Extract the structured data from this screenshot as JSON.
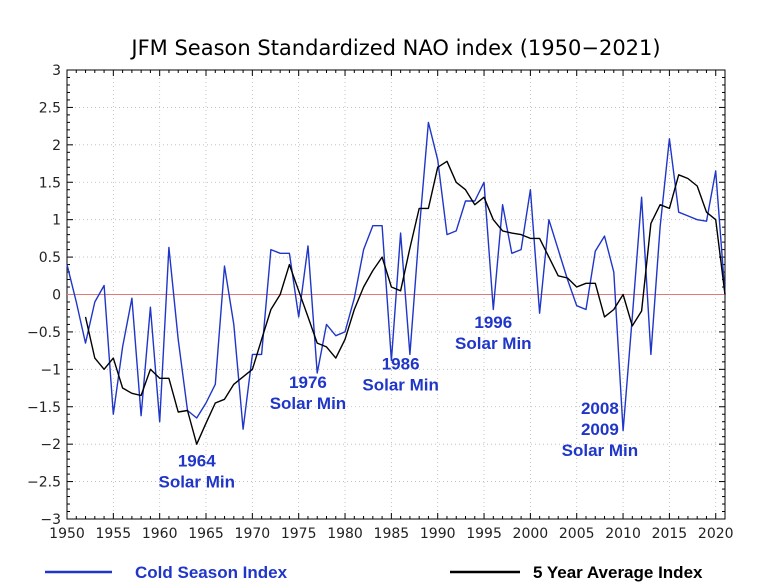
{
  "chart_data": {
    "type": "line",
    "title": "JFM Season Standardized NAO index (1950−2021)",
    "xlim": [
      1950,
      2021
    ],
    "ylim": [
      -3,
      3
    ],
    "x_ticks": [
      1950,
      1955,
      1960,
      1965,
      1970,
      1975,
      1980,
      1985,
      1990,
      1995,
      2000,
      2005,
      2010,
      2015,
      2020
    ],
    "y_ticks": [
      3,
      2.5,
      2,
      1.5,
      1,
      0.5,
      0,
      -0.5,
      -1,
      -1.5,
      -2,
      -2.5,
      -3
    ],
    "y_tick_labels": [
      "3",
      "2.5",
      "2",
      "1.5",
      "1",
      "0.5",
      "0",
      "−0.5",
      "−1",
      "−1.5",
      "−2",
      "−2.5",
      "−3"
    ],
    "zero_line": true,
    "series": [
      {
        "name": "Cold Season Index",
        "color": "#1f36c8",
        "x": [
          1950,
          1951,
          1952,
          1953,
          1954,
          1955,
          1956,
          1957,
          1958,
          1959,
          1960,
          1961,
          1962,
          1963,
          1964,
          1965,
          1966,
          1967,
          1968,
          1969,
          1970,
          1971,
          1972,
          1973,
          1974,
          1975,
          1976,
          1977,
          1978,
          1979,
          1980,
          1981,
          1982,
          1983,
          1984,
          1985,
          1986,
          1987,
          1988,
          1989,
          1990,
          1991,
          1992,
          1993,
          1994,
          1995,
          1996,
          1997,
          1998,
          1999,
          2000,
          2001,
          2002,
          2003,
          2004,
          2005,
          2006,
          2007,
          2008,
          2009,
          2010,
          2011,
          2012,
          2013,
          2014,
          2015,
          2016,
          2017,
          2018,
          2019,
          2020,
          2021
        ],
        "y": [
          0.4,
          -0.1,
          -0.65,
          -0.1,
          0.12,
          -1.6,
          -0.7,
          -0.05,
          -1.62,
          -0.17,
          -1.7,
          0.63,
          -0.6,
          -1.55,
          -1.65,
          -1.45,
          -1.2,
          0.38,
          -0.4,
          -1.8,
          -0.8,
          -0.8,
          0.6,
          0.55,
          0.55,
          -0.3,
          0.65,
          -1.05,
          -0.4,
          -0.55,
          -0.5,
          -0.05,
          0.6,
          0.92,
          0.92,
          -0.88,
          0.82,
          -0.8,
          0.85,
          2.3,
          1.8,
          0.8,
          0.85,
          1.25,
          1.25,
          1.5,
          -0.2,
          1.2,
          0.55,
          0.6,
          1.4,
          -0.25,
          1.0,
          0.6,
          0.2,
          -0.15,
          -0.2,
          0.58,
          0.78,
          0.3,
          -1.82,
          -0.3,
          1.3,
          -0.8,
          0.9,
          2.08,
          1.1,
          1.05,
          1.0,
          0.98,
          1.65,
          0.0
        ]
      },
      {
        "name": "5 Year Average Index",
        "color": "#000000",
        "x": [
          1952,
          1953,
          1954,
          1955,
          1956,
          1957,
          1958,
          1959,
          1960,
          1961,
          1962,
          1963,
          1964,
          1965,
          1966,
          1967,
          1968,
          1969,
          1970,
          1971,
          1972,
          1973,
          1974,
          1975,
          1976,
          1977,
          1978,
          1979,
          1980,
          1981,
          1982,
          1983,
          1984,
          1985,
          1986,
          1987,
          1988,
          1989,
          1990,
          1991,
          1992,
          1993,
          1994,
          1995,
          1996,
          1997,
          1998,
          1999,
          2000,
          2001,
          2002,
          2003,
          2004,
          2005,
          2006,
          2007,
          2008,
          2009,
          2010,
          2011,
          2012,
          2013,
          2014,
          2015,
          2016,
          2017,
          2018,
          2019,
          2020,
          2021
        ],
        "y": [
          -0.3,
          -0.85,
          -1.0,
          -0.85,
          -1.25,
          -1.32,
          -1.35,
          -1.0,
          -1.12,
          -1.12,
          -1.57,
          -1.55,
          -2.0,
          -1.72,
          -1.45,
          -1.4,
          -1.2,
          -1.1,
          -1.0,
          -0.6,
          -0.2,
          0.0,
          0.4,
          0.05,
          -0.3,
          -0.65,
          -0.7,
          -0.85,
          -0.6,
          -0.2,
          0.1,
          0.32,
          0.5,
          0.1,
          0.05,
          0.62,
          1.15,
          1.15,
          1.7,
          1.78,
          1.5,
          1.4,
          1.2,
          1.3,
          1.0,
          0.85,
          0.82,
          0.8,
          0.75,
          0.75,
          0.5,
          0.25,
          0.22,
          0.1,
          0.15,
          0.15,
          -0.3,
          -0.2,
          0.0,
          -0.42,
          -0.22,
          0.95,
          1.2,
          1.15,
          1.6,
          1.55,
          1.45,
          1.1,
          1.0,
          0.0
        ]
      }
    ],
    "annotations": [
      {
        "lines": [
          "1964",
          "Solar Min"
        ],
        "x": 1964,
        "y": -2.3
      },
      {
        "lines": [
          "1976",
          "Solar Min"
        ],
        "x": 1976,
        "y": -1.25
      },
      {
        "lines": [
          "1986",
          "Solar Min"
        ],
        "x": 1986,
        "y": -1.0
      },
      {
        "lines": [
          "1996",
          "Solar Min"
        ],
        "x": 1996,
        "y": -0.45
      },
      {
        "lines": [
          "2008",
          "2009",
          "Solar Min"
        ],
        "x": 2007.5,
        "y": -1.6
      }
    ],
    "legend": {
      "placement": "bottom",
      "items": [
        {
          "label": "Cold Season Index",
          "color": "#1f36c8"
        },
        {
          "label": "5 Year Average Index",
          "color": "#000000"
        }
      ]
    }
  }
}
